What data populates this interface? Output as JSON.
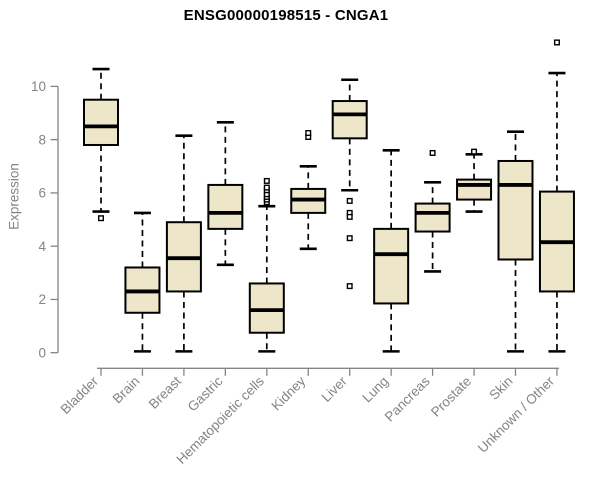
{
  "chart_data": {
    "type": "boxplot",
    "title": "ENSG00000198515 - CNGA1",
    "ylabel": "Expression",
    "xlabel": "",
    "y_ticks": [
      0,
      2,
      4,
      6,
      8,
      10
    ],
    "ylim": [
      0,
      11.8
    ],
    "grid": false,
    "legend": "none",
    "categories": [
      "Bladder",
      "Brain",
      "Breast",
      "Gastric",
      "Hematopoietic cells",
      "Kidney",
      "Liver",
      "Lung",
      "Pancreas",
      "Prostate",
      "Skin",
      "Unknown / Other"
    ],
    "series": [
      {
        "name": "Bladder",
        "low": 5.3,
        "q1": 7.8,
        "median": 8.5,
        "q3": 9.5,
        "high": 10.65,
        "outliers": [
          5.05
        ]
      },
      {
        "name": "Brain",
        "low": 0.05,
        "q1": 1.5,
        "median": 2.3,
        "q3": 3.2,
        "high": 5.25,
        "outliers": []
      },
      {
        "name": "Breast",
        "low": 0.05,
        "q1": 2.3,
        "median": 3.55,
        "q3": 4.9,
        "high": 8.15,
        "outliers": []
      },
      {
        "name": "Gastric",
        "low": 3.3,
        "q1": 4.65,
        "median": 5.25,
        "q3": 6.3,
        "high": 8.65,
        "outliers": []
      },
      {
        "name": "Hematopoietic cells",
        "low": 0.05,
        "q1": 0.75,
        "median": 1.6,
        "q3": 2.6,
        "high": 5.5,
        "outliers": [
          5.65,
          5.75,
          5.85,
          5.95,
          6.1,
          6.2,
          6.45
        ]
      },
      {
        "name": "Kidney",
        "low": 3.9,
        "q1": 5.25,
        "median": 5.75,
        "q3": 6.15,
        "high": 7.0,
        "outliers": [
          8.1,
          8.25
        ]
      },
      {
        "name": "Liver",
        "low": 6.1,
        "q1": 8.05,
        "median": 8.95,
        "q3": 9.45,
        "high": 10.25,
        "outliers": [
          5.7,
          5.25,
          5.1,
          4.3,
          2.5
        ]
      },
      {
        "name": "Lung",
        "low": 0.05,
        "q1": 1.85,
        "median": 3.7,
        "q3": 4.65,
        "high": 7.6,
        "outliers": []
      },
      {
        "name": "Pancreas",
        "low": 3.05,
        "q1": 4.55,
        "median": 5.25,
        "q3": 5.6,
        "high": 6.4,
        "outliers": [
          7.5
        ]
      },
      {
        "name": "Prostate",
        "low": 5.3,
        "q1": 5.75,
        "median": 6.3,
        "q3": 6.5,
        "high": 7.45,
        "outliers": [
          7.55
        ]
      },
      {
        "name": "Skin",
        "low": 0.05,
        "q1": 3.5,
        "median": 6.3,
        "q3": 7.2,
        "high": 8.3,
        "outliers": []
      },
      {
        "name": "Unknown / Other",
        "low": 0.05,
        "q1": 2.3,
        "median": 4.15,
        "q3": 6.05,
        "high": 10.5,
        "outliers": [
          11.65
        ]
      }
    ],
    "colors": {
      "box_fill": "#EDE6C9",
      "box_stroke": "#000000",
      "median": "#000000",
      "whisker": "#000000",
      "axis": "#858585",
      "tick_label": "#848484",
      "title": "#000000",
      "background": "#FFFFFF"
    }
  }
}
